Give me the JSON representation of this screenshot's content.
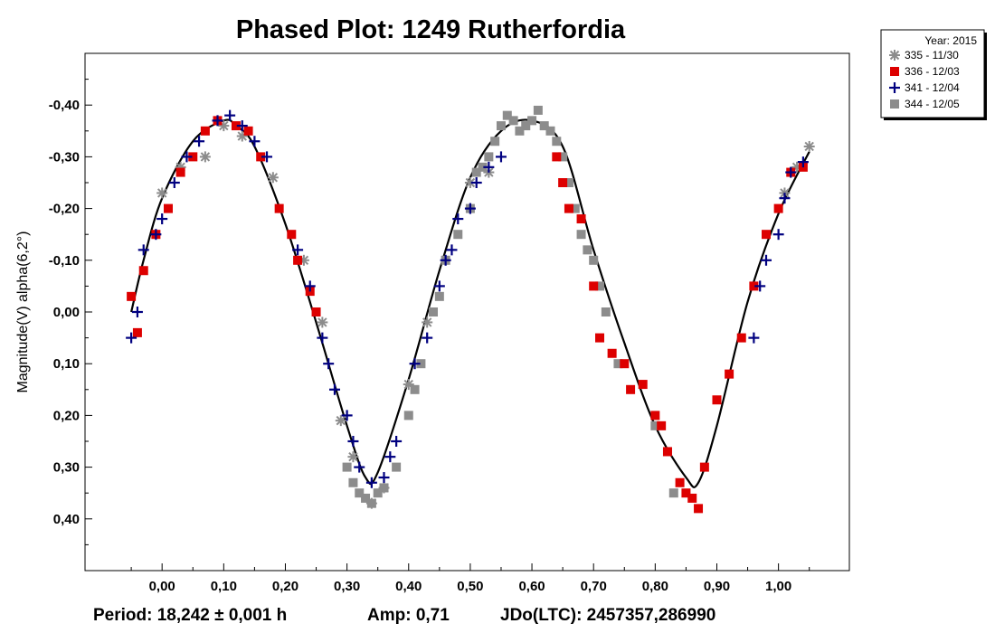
{
  "chart_data": {
    "type": "scatter",
    "title": "Phased Plot: 1249 Rutherfordia",
    "ylabel": "Magnitude(V) alpha(6,2°)",
    "xlabel": "",
    "xlim": [
      -0.125,
      1.115
    ],
    "ylim": [
      -0.5,
      0.5
    ],
    "y_inverted": true,
    "x_ticks": [
      0,
      0.1,
      0.2,
      0.3,
      0.4,
      0.5,
      0.6,
      0.7,
      0.8,
      0.9,
      1.0
    ],
    "x_tick_labels": [
      "0,00",
      "0,10",
      "0,20",
      "0,30",
      "0,40",
      "0,50",
      "0,60",
      "0,70",
      "0,80",
      "0,90",
      "1,00"
    ],
    "y_ticks": [
      -0.4,
      -0.3,
      -0.2,
      -0.1,
      0,
      0.1,
      0.2,
      0.3,
      0.4
    ],
    "y_tick_labels": [
      "-0,40",
      "-0,30",
      "-0,20",
      "-0,10",
      "0,00",
      "0,10",
      "0,20",
      "0,30",
      "0,40"
    ],
    "grid": false,
    "legend": {
      "position": "top-right-outside",
      "header": "Year: 2015",
      "entries": [
        {
          "label": "335 - 11/30",
          "marker": "asterisk",
          "color": "#8c8c8c"
        },
        {
          "label": "336 - 12/03",
          "marker": "square",
          "color": "#dd0000"
        },
        {
          "label": "341 - 12/04",
          "marker": "plus",
          "color": "#000080"
        },
        {
          "label": "344 - 12/05",
          "marker": "square",
          "color": "#8c8c8c"
        }
      ]
    },
    "fit_curve": {
      "color": "#000000",
      "x": [
        -0.05,
        -0.03,
        0.0,
        0.05,
        0.1,
        0.12,
        0.15,
        0.2,
        0.25,
        0.3,
        0.33,
        0.35,
        0.4,
        0.45,
        0.5,
        0.55,
        0.6,
        0.65,
        0.7,
        0.75,
        0.8,
        0.85,
        0.87,
        0.9,
        0.95,
        1.0,
        1.05
      ],
      "y": [
        0.0,
        -0.1,
        -0.22,
        -0.33,
        -0.37,
        -0.36,
        -0.32,
        -0.17,
        0.02,
        0.22,
        0.32,
        0.31,
        0.13,
        -0.08,
        -0.26,
        -0.35,
        -0.37,
        -0.32,
        -0.12,
        0.06,
        0.22,
        0.32,
        0.33,
        0.22,
        -0.02,
        -0.19,
        -0.31
      ]
    },
    "series": [
      {
        "name": "335 - 11/30",
        "x": [
          0.0,
          0.03,
          0.07,
          0.1,
          0.13,
          0.18,
          0.23,
          0.26,
          0.29,
          0.31,
          0.34,
          0.36,
          0.4,
          0.43,
          0.5,
          0.53,
          1.01,
          1.03,
          1.05
        ],
        "y": [
          -0.23,
          -0.28,
          -0.3,
          -0.36,
          -0.34,
          -0.26,
          -0.1,
          0.02,
          0.21,
          0.28,
          0.37,
          0.34,
          0.14,
          0.02,
          -0.25,
          -0.27,
          -0.23,
          -0.28,
          -0.32
        ]
      },
      {
        "name": "336 - 12/03",
        "x": [
          -0.05,
          -0.04,
          -0.03,
          -0.01,
          0.01,
          0.03,
          0.05,
          0.07,
          0.09,
          0.12,
          0.14,
          0.16,
          0.19,
          0.21,
          0.22,
          0.24,
          0.25,
          0.64,
          0.65,
          0.66,
          0.68,
          0.7,
          0.71,
          0.73,
          0.75,
          0.76,
          0.78,
          0.8,
          0.81,
          0.82,
          0.84,
          0.85,
          0.86,
          0.87,
          0.88,
          0.9,
          0.92,
          0.94,
          0.96,
          0.98,
          1.0,
          1.02,
          1.04
        ],
        "y": [
          -0.03,
          0.04,
          -0.08,
          -0.15,
          -0.2,
          -0.27,
          -0.3,
          -0.35,
          -0.37,
          -0.36,
          -0.35,
          -0.3,
          -0.2,
          -0.15,
          -0.1,
          -0.04,
          0.0,
          -0.3,
          -0.25,
          -0.2,
          -0.18,
          -0.05,
          0.05,
          0.08,
          0.1,
          0.15,
          0.14,
          0.2,
          0.22,
          0.27,
          0.33,
          0.35,
          0.36,
          0.38,
          0.3,
          0.17,
          0.12,
          0.05,
          -0.05,
          -0.15,
          -0.2,
          -0.27,
          -0.28
        ]
      },
      {
        "name": "341 - 12/04",
        "x": [
          -0.05,
          -0.04,
          -0.03,
          -0.01,
          0.0,
          0.02,
          0.04,
          0.06,
          0.09,
          0.11,
          0.13,
          0.15,
          0.17,
          0.22,
          0.24,
          0.26,
          0.27,
          0.28,
          0.3,
          0.31,
          0.32,
          0.34,
          0.36,
          0.37,
          0.38,
          0.41,
          0.43,
          0.45,
          0.46,
          0.47,
          0.48,
          0.5,
          0.51,
          0.53,
          0.55,
          0.96,
          0.97,
          0.98,
          1.0,
          1.01,
          1.02,
          1.04
        ],
        "y": [
          0.05,
          0.0,
          -0.12,
          -0.15,
          -0.18,
          -0.25,
          -0.3,
          -0.33,
          -0.37,
          -0.38,
          -0.36,
          -0.33,
          -0.3,
          -0.12,
          -0.05,
          0.05,
          0.1,
          0.15,
          0.2,
          0.25,
          0.3,
          0.33,
          0.32,
          0.28,
          0.25,
          0.1,
          0.05,
          -0.05,
          -0.1,
          -0.12,
          -0.18,
          -0.2,
          -0.25,
          -0.28,
          -0.3,
          0.05,
          -0.05,
          -0.1,
          -0.15,
          -0.22,
          -0.27,
          -0.29
        ]
      },
      {
        "name": "344 - 12/05",
        "x": [
          0.3,
          0.31,
          0.32,
          0.33,
          0.34,
          0.35,
          0.36,
          0.38,
          0.4,
          0.41,
          0.42,
          0.44,
          0.45,
          0.46,
          0.48,
          0.5,
          0.51,
          0.52,
          0.53,
          0.54,
          0.55,
          0.56,
          0.57,
          0.58,
          0.59,
          0.6,
          0.61,
          0.62,
          0.63,
          0.64,
          0.65,
          0.66,
          0.67,
          0.68,
          0.69,
          0.7,
          0.71,
          0.72,
          0.74,
          0.8,
          0.82,
          0.83
        ],
        "y": [
          0.3,
          0.33,
          0.35,
          0.36,
          0.37,
          0.35,
          0.34,
          0.3,
          0.2,
          0.15,
          0.1,
          0.0,
          -0.03,
          -0.1,
          -0.15,
          -0.2,
          -0.27,
          -0.28,
          -0.3,
          -0.33,
          -0.36,
          -0.38,
          -0.37,
          -0.35,
          -0.36,
          -0.37,
          -0.39,
          -0.36,
          -0.35,
          -0.33,
          -0.3,
          -0.25,
          -0.2,
          -0.15,
          -0.12,
          -0.1,
          -0.05,
          0.0,
          0.1,
          0.22,
          0.27,
          0.35
        ]
      }
    ],
    "footer": {
      "period": "Period: 18,242 ± 0,001 h",
      "amp": "Amp: 0,71",
      "jdo": "JDo(LTC): 2457357,286990"
    }
  }
}
